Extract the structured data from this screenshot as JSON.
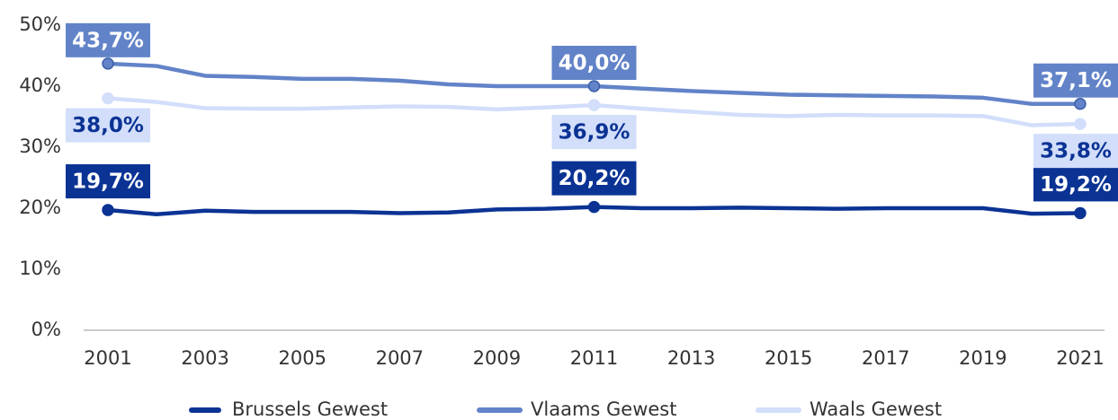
{
  "chart_data": {
    "type": "line",
    "x": [
      2001,
      2002,
      2003,
      2004,
      2005,
      2006,
      2007,
      2008,
      2009,
      2010,
      2011,
      2012,
      2013,
      2014,
      2015,
      2016,
      2017,
      2018,
      2019,
      2020,
      2021
    ],
    "xlim": [
      2000.5,
      2021.5
    ],
    "xticks": [
      2001,
      2003,
      2005,
      2007,
      2009,
      2011,
      2013,
      2015,
      2017,
      2019,
      2021
    ],
    "ylim": [
      0,
      50
    ],
    "yticks": [
      {
        "value": 0,
        "label": "0%"
      },
      {
        "value": 10,
        "label": "10%"
      },
      {
        "value": 20,
        "label": "20%"
      },
      {
        "value": 30,
        "label": "30%"
      },
      {
        "value": 40,
        "label": "40%"
      },
      {
        "value": 50,
        "label": "50%"
      }
    ],
    "grid": false,
    "legend": "bottom",
    "series": [
      {
        "name": "Brussels Gewest",
        "color": "#0b3394",
        "values": [
          19.7,
          19.0,
          19.6,
          19.4,
          19.4,
          19.4,
          19.2,
          19.3,
          19.8,
          19.9,
          20.2,
          20.0,
          20.0,
          20.1,
          20.0,
          19.9,
          20.0,
          20.0,
          20.0,
          19.1,
          19.2
        ],
        "value_labels": [
          "19,7%",
          null,
          null,
          null,
          null,
          null,
          null,
          null,
          null,
          null,
          "20,2%",
          null,
          null,
          null,
          null,
          null,
          null,
          null,
          null,
          null,
          "19,2%"
        ]
      },
      {
        "name": "Vlaams Gewest",
        "color": "#6283c8",
        "values": [
          43.7,
          43.3,
          41.7,
          41.5,
          41.2,
          41.2,
          40.9,
          40.3,
          40.0,
          40.0,
          40.0,
          39.6,
          39.2,
          38.9,
          38.6,
          38.5,
          38.4,
          38.3,
          38.1,
          37.1,
          37.1
        ],
        "value_labels": [
          "43,7%",
          null,
          null,
          null,
          null,
          null,
          null,
          null,
          null,
          null,
          "40,0%",
          null,
          null,
          null,
          null,
          null,
          null,
          null,
          null,
          null,
          "37,1%"
        ]
      },
      {
        "name": "Waals Gewest",
        "color": "#d2defa",
        "values": [
          38.0,
          37.4,
          36.4,
          36.3,
          36.3,
          36.5,
          36.7,
          36.6,
          36.2,
          36.5,
          36.9,
          36.3,
          35.8,
          35.3,
          35.1,
          35.3,
          35.2,
          35.2,
          35.1,
          33.6,
          33.8
        ],
        "value_labels": [
          "38,0%",
          null,
          null,
          null,
          null,
          null,
          null,
          null,
          null,
          null,
          "36,9%",
          null,
          null,
          null,
          null,
          null,
          null,
          null,
          null,
          null,
          "33,8%"
        ]
      }
    ]
  }
}
